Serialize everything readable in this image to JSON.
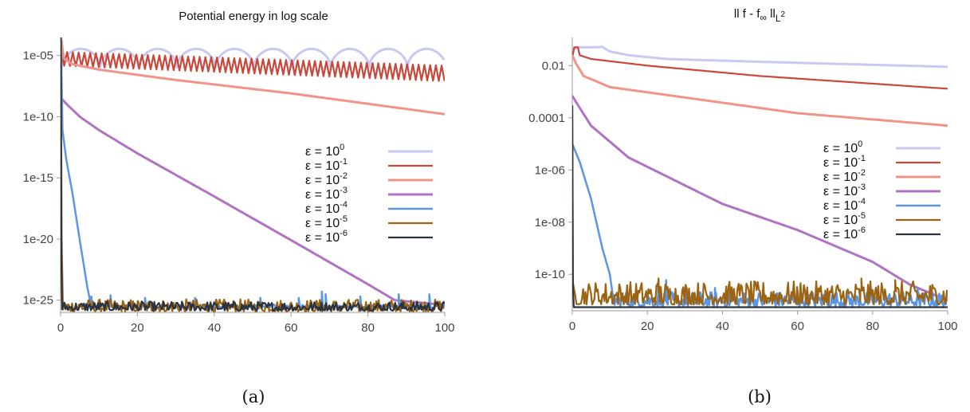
{
  "chart_data": [
    {
      "type": "line",
      "title": "Potential energy in log scale",
      "caption": "(a)",
      "xlabel": "",
      "ylabel": "",
      "xlim": [
        0,
        100
      ],
      "ylim": [
        1e-26,
        0.0003
      ],
      "yscale": "log",
      "grid": false,
      "legend_position": "middle-right",
      "x_ticks": [
        0,
        20,
        40,
        60,
        80,
        100
      ],
      "x_tick_labels": [
        "0",
        "20",
        "40",
        "60",
        "80",
        "100"
      ],
      "y_ticks": [
        1e-05,
        1e-10,
        1e-15,
        1e-20,
        1e-25
      ],
      "y_tick_labels": [
        "1e-05",
        "1e-10",
        "1e-15",
        "1e-20",
        "1e-25"
      ],
      "series": [
        {
          "name": "ε = 10",
          "exp": "0",
          "color": "#c9c8f0",
          "width": 3,
          "pattern": {
            "kind": "arches",
            "period": 10,
            "lo": 1.1e-06,
            "hi": 3.5e-05,
            "x0": 0.3,
            "y0": 0.0002
          }
        },
        {
          "name": "ε = 10",
          "exp": "-1",
          "color": "#c9473b",
          "width": 2.2,
          "pattern": {
            "kind": "osc",
            "period": 1.5,
            "x0": 0.2,
            "y0": 0.0002,
            "env_start": [
              2e-05,
              1.5e-06
            ],
            "env_end": [
              1.5e-06,
              8e-08
            ]
          }
        },
        {
          "name": "ε = 10",
          "exp": "-2",
          "color": "#f0948a",
          "width": 3,
          "points": [
            [
              0.2,
              0.0002
            ],
            [
              0.8,
              6e-06
            ],
            [
              3,
              2e-06
            ],
            [
              10,
              7e-07
            ],
            [
              30,
              1e-07
            ],
            [
              60,
              8e-09
            ],
            [
              100,
              1.6e-10
            ]
          ]
        },
        {
          "name": "ε = 10",
          "exp": "-3",
          "color": "#b172c4",
          "width": 3,
          "points": [
            [
              0.2,
              3e-09
            ],
            [
              2,
              8e-10
            ],
            [
              5,
              1e-10
            ],
            [
              10,
              8e-12
            ],
            [
              20,
              1e-13
            ],
            [
              40,
              3e-17
            ],
            [
              60,
              8e-21
            ],
            [
              80,
              2e-24
            ],
            [
              87,
              1e-25
            ],
            [
              100,
              4e-26
            ]
          ]
        },
        {
          "name": "ε = 10",
          "exp": "-4",
          "color": "#5b95e6",
          "width": 2.5,
          "points": [
            [
              0.1,
              0.0003
            ],
            [
              0.5,
              8e-12
            ],
            [
              1.5,
              3e-14
            ],
            [
              3,
              8e-17
            ],
            [
              5,
              8e-21
            ],
            [
              7,
              1e-24
            ],
            [
              8,
              3e-26
            ],
            [
              100,
              3e-26
            ]
          ],
          "spikes": [
            [
              8,
              2e-25
            ],
            [
              13,
              2.5e-25
            ],
            [
              22,
              1.5e-25
            ],
            [
              35,
              1.5e-25
            ],
            [
              52,
              1.5e-25
            ],
            [
              62,
              1.5e-25
            ],
            [
              68,
              5e-25
            ],
            [
              69,
              3e-25
            ],
            [
              78,
              2e-25
            ],
            [
              88,
              3e-25
            ],
            [
              96,
              3e-25
            ]
          ]
        },
        {
          "name": "ε = 10",
          "exp": "-5",
          "color": "#9c6412",
          "width": 2.2,
          "points": [
            [
              0.1,
              0.0003
            ],
            [
              0.3,
              1e-20
            ],
            [
              0.6,
              3e-26
            ],
            [
              100,
              3e-26
            ]
          ],
          "noise": {
            "from": 0.6,
            "to": 100,
            "lo": 1.2e-26,
            "hi": 1.2e-25
          }
        },
        {
          "name": "ε = 10",
          "exp": "-6",
          "color": "#2a3340",
          "width": 2.2,
          "points": [
            [
              0.05,
              0.0003
            ],
            [
              0.2,
              1e-22
            ],
            [
              0.4,
              3e-26
            ],
            [
              100,
              3e-26
            ]
          ],
          "noise": {
            "from": 0.4,
            "to": 100,
            "lo": 1.4e-26,
            "hi": 8e-26
          }
        }
      ]
    },
    {
      "type": "line",
      "title": "ll f - f",
      "title_sub_inf": "∞",
      "title_mid": " ll",
      "title_sub": "L",
      "title_sup": "2",
      "caption": "(b)",
      "xlabel": "",
      "ylabel": "",
      "xlim": [
        0,
        100
      ],
      "ylim": [
        4e-12,
        0.12
      ],
      "yscale": "log",
      "grid": false,
      "legend_position": "middle-right",
      "x_ticks": [
        0,
        20,
        40,
        60,
        80,
        100
      ],
      "x_tick_labels": [
        "0",
        "20",
        "40",
        "60",
        "80",
        "100"
      ],
      "y_ticks": [
        0.01,
        0.0001,
        1e-06,
        1e-08,
        1e-10
      ],
      "y_tick_labels": [
        "0.01",
        "0.0001",
        "1e-06",
        "1e-08",
        "1e-10"
      ],
      "series": [
        {
          "name": "ε = 10",
          "exp": "0",
          "color": "#c9c8f0",
          "width": 3,
          "points": [
            [
              0,
              0.035
            ],
            [
              1,
              0.05
            ],
            [
              4,
              0.05
            ],
            [
              8,
              0.052
            ],
            [
              10,
              0.035
            ],
            [
              15,
              0.025
            ],
            [
              25,
              0.018
            ],
            [
              50,
              0.014
            ],
            [
              100,
              0.009
            ]
          ]
        },
        {
          "name": "ε = 10",
          "exp": "-1",
          "color": "#c9473b",
          "width": 2.2,
          "points": [
            [
              0,
              0.02
            ],
            [
              0.5,
              0.05
            ],
            [
              1.5,
              0.05
            ],
            [
              2,
              0.025
            ],
            [
              5,
              0.018
            ],
            [
              20,
              0.01
            ],
            [
              50,
              0.004
            ],
            [
              100,
              0.0013
            ]
          ]
        },
        {
          "name": "ε = 10",
          "exp": "-2",
          "color": "#f0948a",
          "width": 3,
          "points": [
            [
              0,
              0.025
            ],
            [
              1,
              0.012
            ],
            [
              3,
              0.004
            ],
            [
              10,
              0.0015
            ],
            [
              30,
              0.0006
            ],
            [
              60,
              0.00015
            ],
            [
              100,
              5e-05
            ]
          ]
        },
        {
          "name": "ε = 10",
          "exp": "-3",
          "color": "#b172c4",
          "width": 3,
          "points": [
            [
              0,
              0.0007
            ],
            [
              1,
              0.0004
            ],
            [
              5,
              5e-05
            ],
            [
              15,
              3e-06
            ],
            [
              40,
              5e-08
            ],
            [
              60,
              5e-09
            ],
            [
              80,
              3e-10
            ],
            [
              90,
              4e-11
            ],
            [
              100,
              1e-11
            ]
          ]
        },
        {
          "name": "ε = 10",
          "exp": "-4",
          "color": "#5b95e6",
          "width": 2.5,
          "points": [
            [
              0,
              1e-05
            ],
            [
              2,
              2e-06
            ],
            [
              5,
              8e-08
            ],
            [
              8,
              1e-09
            ],
            [
              10,
              1e-10
            ],
            [
              11,
              1e-11
            ],
            [
              100,
              1e-11
            ]
          ],
          "spikes": [
            [
              23,
              6e-11
            ],
            [
              25,
              6e-11
            ],
            [
              38,
              3e-11
            ],
            [
              60,
              2.5e-11
            ],
            [
              79,
              2.5e-11
            ],
            [
              92,
              3e-11
            ]
          ],
          "noise": {
            "from": 11,
            "to": 100,
            "lo": 6e-12,
            "hi": 2.2e-11
          }
        },
        {
          "name": "ε = 10",
          "exp": "-5",
          "color": "#9c6412",
          "width": 2.2,
          "points": [
            [
              0,
              0.0003
            ],
            [
              0.2,
              4e-11
            ],
            [
              100,
              2e-11
            ]
          ],
          "noise": {
            "from": 0.2,
            "to": 100,
            "lo": 7e-12,
            "hi": 5.5e-11
          },
          "spikes": [
            [
              23,
              7e-11
            ],
            [
              77,
              7e-11
            ],
            [
              86,
              6e-11
            ]
          ]
        },
        {
          "name": "ε = 10",
          "exp": "-6",
          "color": "#2a3340",
          "width": 2.2,
          "points": [
            [
              0,
              0.0003
            ],
            [
              0.15,
              5e-11
            ],
            [
              0.4,
              5.5e-12
            ],
            [
              100,
              5.5e-12
            ]
          ]
        }
      ]
    }
  ]
}
